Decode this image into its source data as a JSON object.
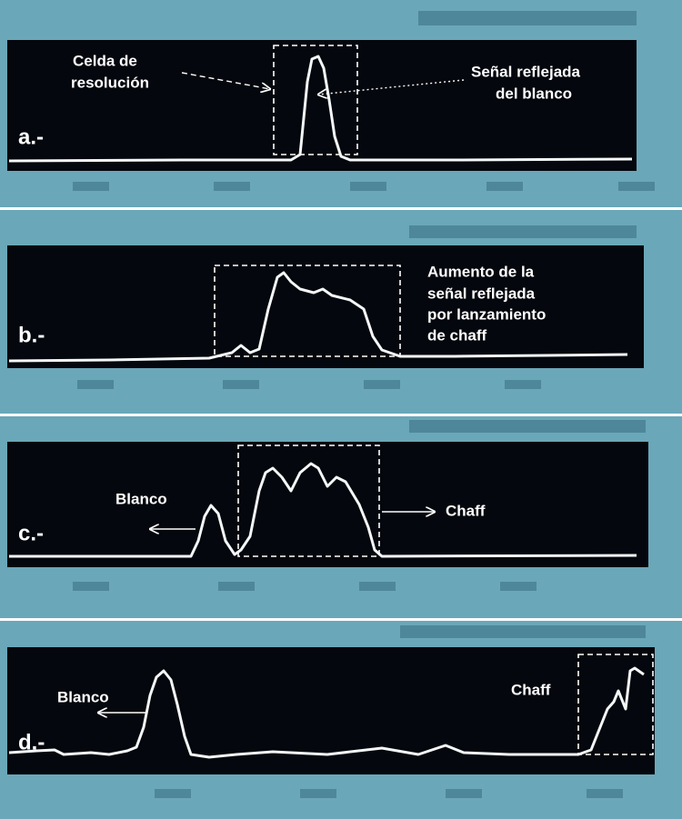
{
  "panels": [
    {
      "label": "a.-",
      "annotations": [
        {
          "lines": [
            "Celda de",
            "resolución"
          ]
        },
        {
          "lines": [
            "Señal reflejada",
            "del blanco"
          ]
        }
      ]
    },
    {
      "label": "b.-",
      "annotations": [
        {
          "lines": [
            "Aumento de la",
            "señal reflejada",
            "por lanzamiento",
            "de chaff"
          ]
        }
      ]
    },
    {
      "label": "c.-",
      "annotations": [
        {
          "lines": [
            "Blanco"
          ]
        },
        {
          "lines": [
            "Chaff"
          ]
        }
      ]
    },
    {
      "label": "d.-",
      "annotations": [
        {
          "lines": [
            "Blanco"
          ]
        },
        {
          "lines": [
            "Chaff"
          ]
        }
      ]
    }
  ]
}
